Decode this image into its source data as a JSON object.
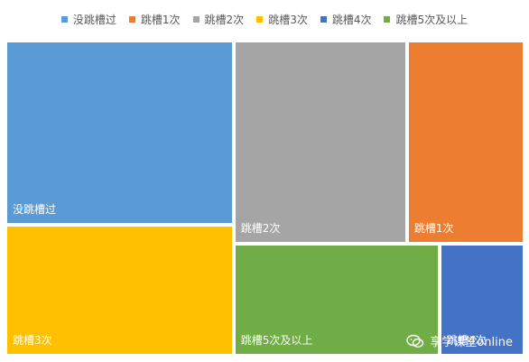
{
  "chart_data": {
    "type": "treemap",
    "categories": [
      "没跳槽过",
      "跳槽1次",
      "跳槽2次",
      "跳槽3次",
      "跳槽4次",
      "跳槽5次及以上"
    ],
    "values": [
      18.5,
      10.5,
      15.5,
      13.2,
      4.2,
      10.2
    ],
    "colors": [
      "#5B9BD5",
      "#ED7D31",
      "#A5A5A5",
      "#FFC000",
      "#4472C4",
      "#70AD47"
    ],
    "legend_position": "top"
  },
  "watermark": {
    "text": "享学课堂online",
    "icon": "wechat-icon"
  }
}
